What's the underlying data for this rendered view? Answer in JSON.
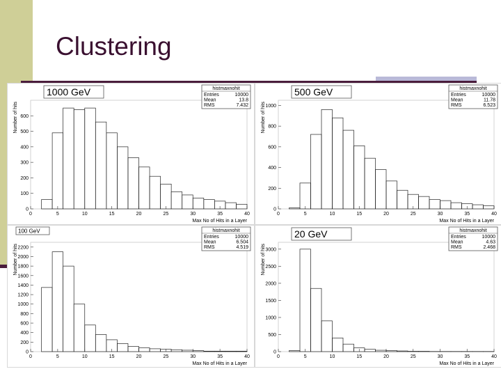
{
  "slide": {
    "title": "Clustering"
  },
  "colors": {
    "accent_bar": "#cfcf97",
    "dark": "#4a1d3c",
    "hist": "#222222"
  },
  "chart_data": [
    {
      "type": "bar",
      "label": "1000 GeV",
      "stats": {
        "name": "histmaxnohit",
        "entries_label": "Entries",
        "entries": "10000",
        "mean_label": "Mean",
        "mean": "13.8",
        "rms_label": "RMS",
        "rms": "7.432"
      },
      "xlabel": "Max No of Hits in a Layer",
      "ylabel": "Number of hits",
      "xlim": [
        0,
        40
      ],
      "ylim": [
        0,
        700
      ],
      "xticks": [
        "0",
        "5",
        "10",
        "15",
        "20",
        "25",
        "30",
        "35",
        "40"
      ],
      "yticks": [
        "0",
        "100",
        "200",
        "300",
        "400",
        "500",
        "600"
      ],
      "ytick_values": [
        0,
        100,
        200,
        300,
        400,
        500,
        600
      ],
      "x": [
        0,
        2,
        4,
        6,
        8,
        10,
        12,
        14,
        16,
        18,
        20,
        22,
        24,
        26,
        28,
        30,
        32,
        34,
        36,
        38
      ],
      "values": [
        0,
        60,
        490,
        650,
        640,
        650,
        560,
        490,
        400,
        330,
        270,
        210,
        160,
        110,
        90,
        70,
        60,
        50,
        40,
        30
      ]
    },
    {
      "type": "bar",
      "label": "500 GeV",
      "stats": {
        "name": "histmaxnohit",
        "entries_label": "Entries",
        "entries": "10000",
        "mean_label": "Mean",
        "mean": "11.78",
        "rms_label": "RMS",
        "rms": "6.523"
      },
      "xlabel": "Max No of Hits in a Layer",
      "ylabel": "Number of hits",
      "xlim": [
        0,
        40
      ],
      "ylim": [
        0,
        1050
      ],
      "xticks": [
        "0",
        "5",
        "10",
        "15",
        "20",
        "25",
        "30",
        "35",
        "40"
      ],
      "yticks": [
        "0",
        "200",
        "400",
        "600",
        "800",
        "1000"
      ],
      "ytick_values": [
        0,
        200,
        400,
        600,
        800,
        1000
      ],
      "x": [
        0,
        2,
        4,
        6,
        8,
        10,
        12,
        14,
        16,
        18,
        20,
        22,
        24,
        26,
        28,
        30,
        32,
        34,
        36,
        38
      ],
      "values": [
        0,
        10,
        250,
        720,
        960,
        880,
        760,
        610,
        490,
        380,
        270,
        180,
        140,
        120,
        90,
        80,
        60,
        50,
        40,
        30
      ]
    },
    {
      "type": "bar",
      "label": "100 GeV",
      "stats": {
        "name": "histmaxnohit",
        "entries_label": "Entries",
        "entries": "10000",
        "mean_label": "Mean",
        "mean": "6.504",
        "rms_label": "RMS",
        "rms": "4.519"
      },
      "xlabel": "Max No of Hits in a Layer",
      "ylabel": "Number of hits",
      "xlim": [
        0,
        40
      ],
      "ylim": [
        0,
        2300
      ],
      "xticks": [
        "0",
        "5",
        "10",
        "15",
        "20",
        "25",
        "30",
        "35",
        "40"
      ],
      "yticks": [
        "0",
        "200",
        "400",
        "600",
        "800",
        "1000",
        "1200",
        "1400",
        "1600",
        "1800",
        "2000",
        "2200"
      ],
      "ytick_values": [
        0,
        200,
        400,
        600,
        800,
        1000,
        1200,
        1400,
        1600,
        1800,
        2000,
        2200
      ],
      "x": [
        0,
        2,
        4,
        6,
        8,
        10,
        12,
        14,
        16,
        18,
        20,
        22,
        24,
        26,
        28,
        30,
        32,
        34,
        36,
        38
      ],
      "values": [
        0,
        1350,
        2100,
        1800,
        1000,
        560,
        360,
        250,
        170,
        110,
        80,
        60,
        50,
        40,
        30,
        20,
        10,
        10,
        10,
        10
      ]
    },
    {
      "type": "bar",
      "label": "20 GeV",
      "stats": {
        "name": "histmaxnohit",
        "entries_label": "Entries",
        "entries": "10000",
        "mean_label": "Mean",
        "mean": "4.63",
        "rms_label": "RMS",
        "rms": "2.468"
      },
      "xlabel": "Max No of Hits in a Layer",
      "ylabel": "Number of hits",
      "xlim": [
        0,
        40
      ],
      "ylim": [
        0,
        3200
      ],
      "xticks": [
        "0",
        "5",
        "10",
        "15",
        "20",
        "25",
        "30",
        "35",
        "40"
      ],
      "yticks": [
        "0",
        "500",
        "1000",
        "1500",
        "2000",
        "2500",
        "3000"
      ],
      "ytick_values": [
        0,
        500,
        1000,
        1500,
        2000,
        2500,
        3000
      ],
      "x": [
        0,
        2,
        4,
        6,
        8,
        10,
        12,
        14,
        16,
        18,
        20,
        22,
        24,
        26,
        28,
        30,
        32,
        34,
        36,
        38
      ],
      "values": [
        0,
        30,
        3000,
        1850,
        900,
        400,
        220,
        110,
        70,
        40,
        30,
        20,
        10,
        10,
        5,
        5,
        5,
        5,
        5,
        5
      ]
    }
  ]
}
